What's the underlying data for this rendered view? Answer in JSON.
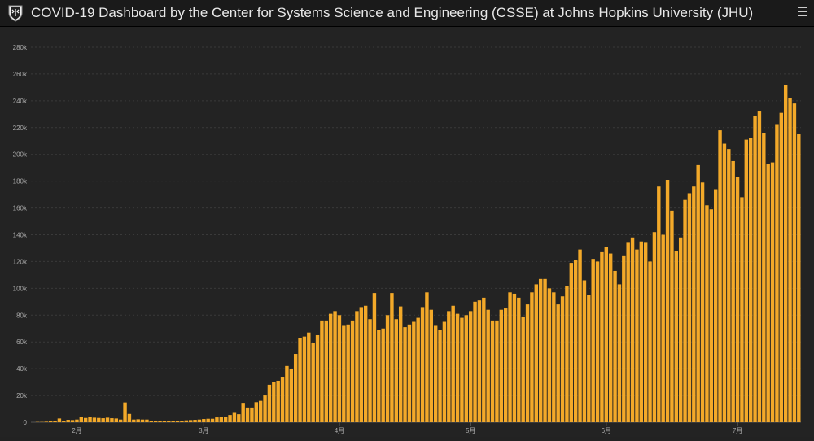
{
  "header": {
    "title": "COVID-19 Dashboard by the Center for Systems Science and Engineering (CSSE) at Johns Hopkins University (JHU)"
  },
  "colors": {
    "bar": "#f3a929",
    "bar_edge": "#c98712",
    "grid": "#3a3a3a",
    "tick_text": "#aaaaaa",
    "background": "#232323"
  },
  "chart_data": {
    "type": "bar",
    "title": "",
    "xlabel": "",
    "ylabel": "",
    "ylim": [
      0,
      280000
    ],
    "y_ticks": [
      0,
      20000,
      40000,
      60000,
      80000,
      100000,
      120000,
      140000,
      160000,
      180000,
      200000,
      220000,
      240000,
      260000,
      280000
    ],
    "y_tick_labels": [
      "0",
      "20k",
      "40k",
      "60k",
      "80k",
      "100k",
      "120k",
      "140k",
      "160k",
      "180k",
      "200k",
      "220k",
      "240k",
      "260k",
      "280k"
    ],
    "x_tick_labels": [
      "2月",
      "3月",
      "4月",
      "5月",
      "6月",
      "7月"
    ],
    "x_tick_bar_index": [
      10,
      39,
      70,
      100,
      131,
      161
    ],
    "grid": true,
    "values": [
      0,
      200,
      200,
      400,
      600,
      800,
      2800,
      600,
      1800,
      1600,
      2000,
      4200,
      3200,
      3800,
      3400,
      3200,
      3000,
      3400,
      3000,
      2800,
      2000,
      14800,
      6200,
      2000,
      2200,
      2000,
      2000,
      800,
      600,
      900,
      1200,
      600,
      600,
      800,
      1200,
      1400,
      1600,
      1800,
      2000,
      2400,
      2600,
      2600,
      3600,
      3800,
      3800,
      5400,
      7600,
      6000,
      14500,
      11000,
      11000,
      15000,
      16000,
      20000,
      28000,
      30000,
      31000,
      34000,
      42000,
      40000,
      51000,
      63000,
      64000,
      67000,
      59000,
      65000,
      76000,
      76000,
      81000,
      83000,
      80000,
      72000,
      73000,
      76000,
      83000,
      86000,
      87000,
      77000,
      96500,
      69000,
      70000,
      80000,
      96500,
      77000,
      86500,
      71000,
      73000,
      75000,
      78000,
      86000,
      97000,
      84000,
      72000,
      69000,
      75000,
      83000,
      87000,
      81000,
      78000,
      80000,
      83000,
      90000,
      91000,
      93000,
      84000,
      76000,
      76000,
      84000,
      85000,
      97000,
      96000,
      93000,
      79000,
      88000,
      97000,
      103000,
      107000,
      107000,
      100000,
      97000,
      88000,
      94000,
      102000,
      119000,
      121000,
      129000,
      106000,
      95000,
      122000,
      120000,
      127000,
      131000,
      126000,
      113000,
      103000,
      124000,
      134000,
      138000,
      129000,
      135000,
      134000,
      120000,
      142000,
      176000,
      140000,
      181000,
      158000,
      128000,
      138000,
      166000,
      171000,
      176000,
      192000,
      179000,
      162000,
      159000,
      174000,
      218000,
      208000,
      204000,
      195000,
      183000,
      168000,
      211000,
      212000,
      229000,
      232000,
      216000,
      193000,
      194000,
      222000,
      231000,
      252000,
      242000,
      238000,
      215000
    ]
  }
}
